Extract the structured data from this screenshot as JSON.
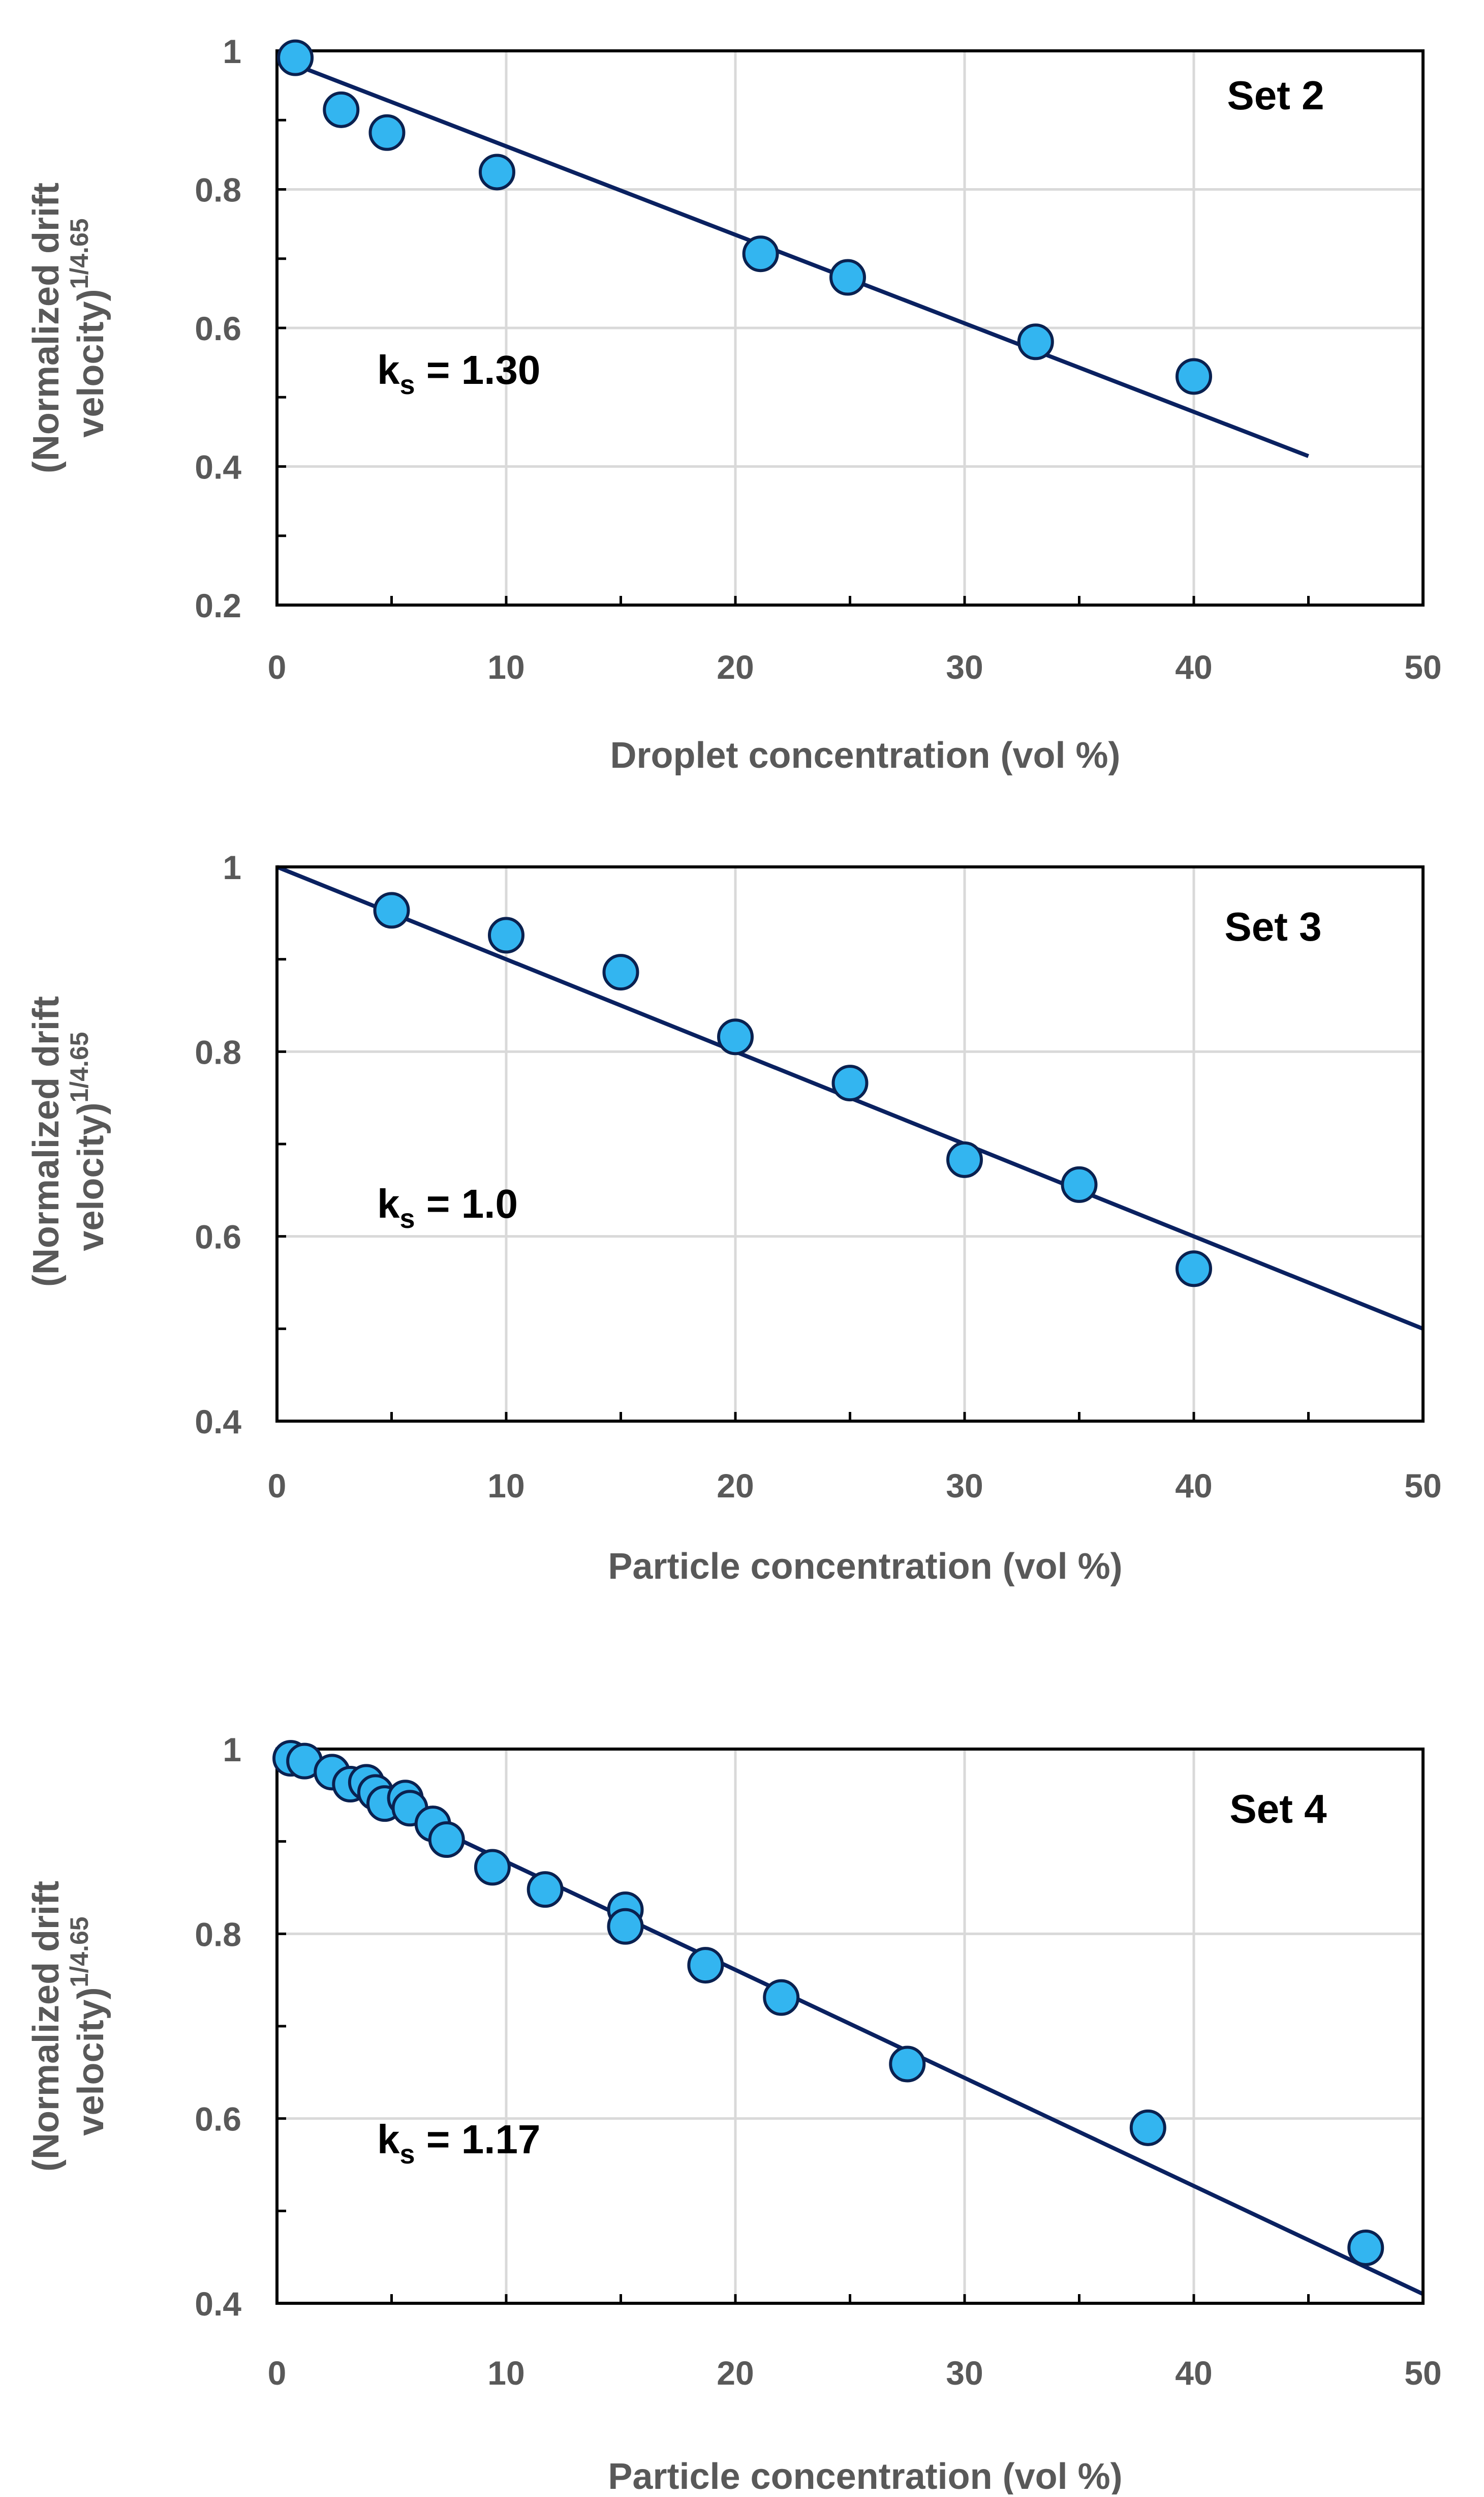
{
  "colors": {
    "marker_fill": "#33B5F0",
    "marker_stroke": "#0A2150",
    "fit_line": "#0A2160",
    "grid": "#D9D9D9",
    "axis_text": "#595959",
    "frame": "#000000"
  },
  "chart_data": [
    {
      "type": "scatter",
      "title": "Set 2",
      "ylabel_line1": "(Normalized drift",
      "ylabel_line2": "velocity)",
      "ylabel_sup": "1/4.65",
      "xlabel": "Droplet concentration (vol %)",
      "xlim": [
        0,
        50
      ],
      "ylim": [
        0.2,
        1
      ],
      "xticks": [
        0,
        10,
        20,
        30,
        40,
        50
      ],
      "yticks": [
        0.2,
        0.4,
        0.6,
        0.8,
        1
      ],
      "ytick_labels": [
        "0.2",
        "0.4",
        "0.6",
        "0.8",
        "1"
      ],
      "xtick_labels": [
        "0",
        "10",
        "20",
        "30",
        "40",
        "50"
      ],
      "annotation_main": "k",
      "annotation_sub": "s",
      "annotation_value": " = 1.30",
      "points": [
        {
          "x": 0.8,
          "y": 0.99
        },
        {
          "x": 2.8,
          "y": 0.915
        },
        {
          "x": 4.8,
          "y": 0.882
        },
        {
          "x": 9.6,
          "y": 0.825
        },
        {
          "x": 21.1,
          "y": 0.707
        },
        {
          "x": 24.9,
          "y": 0.673
        },
        {
          "x": 33.1,
          "y": 0.58
        },
        {
          "x": 40,
          "y": 0.53
        }
      ],
      "fit": {
        "x": [
          0,
          45
        ],
        "y": [
          0.99,
          0.415
        ]
      }
    },
    {
      "type": "scatter",
      "title": "Set 3",
      "ylabel_line1": "(Normalized drift",
      "ylabel_line2": "velocity)",
      "ylabel_sup": "1/4.65",
      "xlabel": "Particle  concentration (vol %)",
      "xlim": [
        0,
        50
      ],
      "ylim": [
        0.4,
        1
      ],
      "xticks": [
        0,
        10,
        20,
        30,
        40,
        50
      ],
      "yticks": [
        0.4,
        0.6,
        0.8,
        1
      ],
      "ytick_labels": [
        "0.4",
        "0.6",
        "0.8",
        "1"
      ],
      "xtick_labels": [
        "0",
        "10",
        "20",
        "30",
        "40",
        "50"
      ],
      "annotation_main": "k",
      "annotation_sub": "s",
      "annotation_value": " = 1.0",
      "points": [
        {
          "x": 5,
          "y": 0.953
        },
        {
          "x": 10,
          "y": 0.926
        },
        {
          "x": 15,
          "y": 0.886
        },
        {
          "x": 20,
          "y": 0.816
        },
        {
          "x": 25,
          "y": 0.766
        },
        {
          "x": 30,
          "y": 0.683
        },
        {
          "x": 35,
          "y": 0.656
        },
        {
          "x": 40,
          "y": 0.565
        }
      ],
      "fit": {
        "x": [
          0,
          50
        ],
        "y": [
          1.0,
          0.5
        ]
      }
    },
    {
      "type": "scatter",
      "title": "Set 4",
      "ylabel_line1": "(Normalized drift",
      "ylabel_line2": "velocity)",
      "ylabel_sup": "1/4.65",
      "xlabel": "Particle concentration (vol %)",
      "xlim": [
        0,
        50
      ],
      "ylim": [
        0.4,
        1
      ],
      "xticks": [
        0,
        10,
        20,
        30,
        40,
        50
      ],
      "yticks": [
        0.4,
        0.6,
        0.8,
        1
      ],
      "ytick_labels": [
        "0.4",
        "0.6",
        "0.8",
        "1"
      ],
      "xtick_labels": [
        "0",
        "10",
        "20",
        "30",
        "40",
        "50"
      ],
      "annotation_main": "k",
      "annotation_sub": "s",
      "annotation_value": " = 1.17",
      "points": [
        {
          "x": 0.6,
          "y": 0.99
        },
        {
          "x": 1.2,
          "y": 0.987
        },
        {
          "x": 2.4,
          "y": 0.975
        },
        {
          "x": 3.2,
          "y": 0.962
        },
        {
          "x": 3.9,
          "y": 0.964
        },
        {
          "x": 4.3,
          "y": 0.953
        },
        {
          "x": 4.7,
          "y": 0.941
        },
        {
          "x": 5.6,
          "y": 0.947
        },
        {
          "x": 5.8,
          "y": 0.936
        },
        {
          "x": 6.8,
          "y": 0.919
        },
        {
          "x": 7.4,
          "y": 0.902
        },
        {
          "x": 9.4,
          "y": 0.872
        },
        {
          "x": 11.7,
          "y": 0.848
        },
        {
          "x": 15.2,
          "y": 0.826
        },
        {
          "x": 15.2,
          "y": 0.808
        },
        {
          "x": 18.7,
          "y": 0.766
        },
        {
          "x": 22,
          "y": 0.731
        },
        {
          "x": 27.5,
          "y": 0.659
        },
        {
          "x": 38,
          "y": 0.59
        },
        {
          "x": 47.5,
          "y": 0.46
        }
      ],
      "fit": {
        "x": [
          0,
          50
        ],
        "y": [
          0.995,
          0.41
        ]
      }
    }
  ]
}
